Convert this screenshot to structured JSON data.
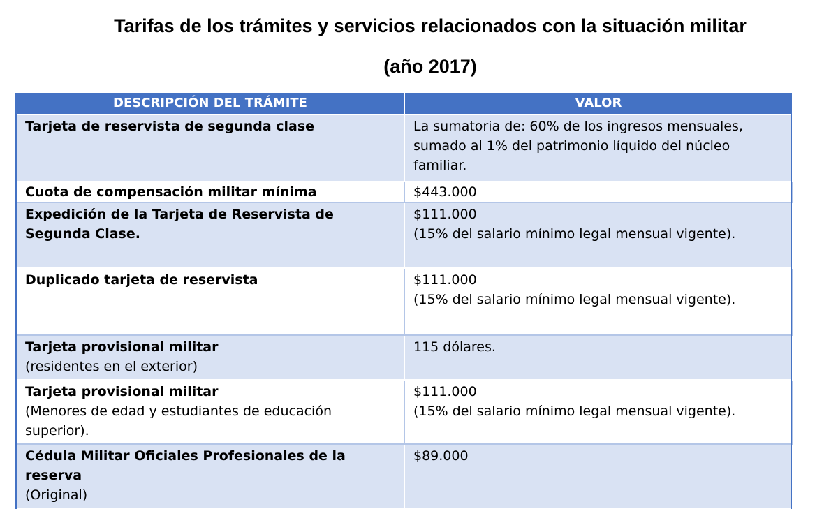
{
  "document": {
    "title_line1": "Tarifas de los trámites y servicios relacionados con la situación militar",
    "title_line2": "(año 2017)"
  },
  "table": {
    "headers": [
      "DESCRIPCIÓN DEL TRÁMITE",
      "VALOR"
    ],
    "header_color": "#4472c4",
    "band_color": "#d9e2f3",
    "rows": [
      {
        "desc": "Tarjeta de reservista de segunda clase",
        "desc_sub": "",
        "value_lines": [
          "La sumatoria de: 60% de los ingresos mensuales,",
          "sumado al 1% del patrimonio líquido del núcleo",
          "familiar."
        ]
      },
      {
        "desc": "Cuota de compensación militar mínima",
        "desc_sub": "",
        "value_lines": [
          "$443.000"
        ]
      },
      {
        "desc": "Expedición de la Tarjeta de Reservista de Segunda Clase.",
        "desc_sub": "",
        "value_lines": [
          "$111.000",
          "(15% del salario mínimo legal mensual vigente)."
        ]
      },
      {
        "desc": "Duplicado tarjeta de reservista",
        "desc_sub": "",
        "value_lines": [
          "$111.000",
          "(15% del salario mínimo legal mensual vigente)."
        ]
      },
      {
        "desc": "Tarjeta provisional militar",
        "desc_sub": "(residentes en el exterior)",
        "value_lines": [
          "115 dólares."
        ]
      },
      {
        "desc": "Tarjeta provisional militar",
        "desc_sub": "(Menores de edad y estudiantes de educación superior).",
        "value_lines": [
          "$111.000",
          "(15% del salario mínimo legal mensual vigente)."
        ]
      },
      {
        "desc": "Cédula Militar Oficiales Profesionales de la reserva",
        "desc_sub": "(Original)",
        "value_lines": [
          "$89.000"
        ]
      }
    ]
  }
}
